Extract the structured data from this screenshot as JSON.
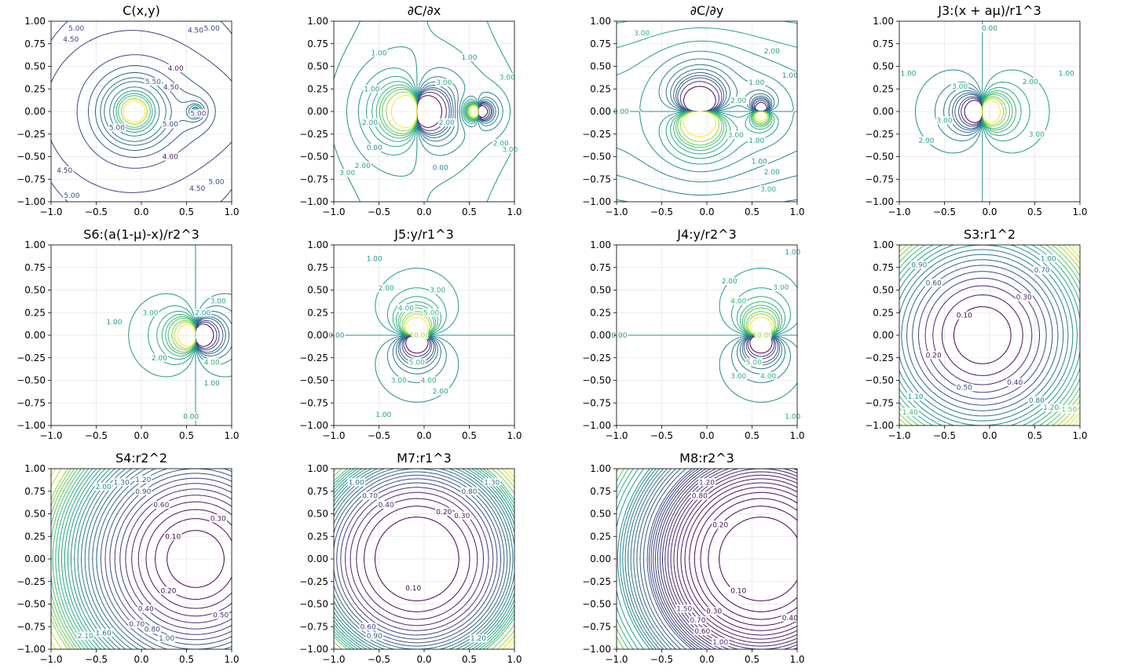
{
  "figure": {
    "rows": 3,
    "cols": 4
  },
  "chart_data": [
    {
      "type": "contour",
      "title": "C(x,y)",
      "field": "C",
      "xlim": [
        -1,
        1
      ],
      "ylim": [
        -1,
        1
      ],
      "xticks": [
        "−1.0",
        "−0.5",
        "0.0",
        "0.5",
        "1.0"
      ],
      "yticks": [
        "1.00",
        "0.75",
        "0.50",
        "0.25",
        "0.00",
        "−0.25",
        "−0.50",
        "−0.75",
        "−1.00"
      ],
      "levels": [
        3.5,
        3.75,
        4.0,
        4.25,
        4.5,
        4.75,
        5.0,
        5.25,
        5.5,
        5.75,
        6.0,
        6.5,
        7.0,
        7.5,
        8.0,
        9.0,
        10.0
      ],
      "labels": [
        {
          "x": -0.72,
          "y": 0.92,
          "text": "5.00"
        },
        {
          "x": -0.78,
          "y": 0.8,
          "text": "4.50"
        },
        {
          "x": 0.6,
          "y": 0.9,
          "text": "4.50"
        },
        {
          "x": 0.78,
          "y": 0.92,
          "text": "5.00"
        },
        {
          "x": 0.38,
          "y": 0.48,
          "text": "4.00"
        },
        {
          "x": 0.13,
          "y": 0.33,
          "text": "5.50"
        },
        {
          "x": 0.33,
          "y": 0.27,
          "text": "4.50"
        },
        {
          "x": 0.63,
          "y": -0.02,
          "text": "5.00"
        },
        {
          "x": 0.32,
          "y": -0.14,
          "text": "5.00"
        },
        {
          "x": -0.27,
          "y": -0.18,
          "text": "5.00"
        },
        {
          "x": 0.32,
          "y": -0.5,
          "text": "4.00"
        },
        {
          "x": -0.85,
          "y": -0.65,
          "text": "4.50"
        },
        {
          "x": -0.77,
          "y": -0.93,
          "text": "5.00"
        },
        {
          "x": 0.62,
          "y": -0.85,
          "text": "4.50"
        },
        {
          "x": 0.83,
          "y": -0.78,
          "text": "5.00"
        }
      ]
    },
    {
      "type": "contour",
      "title": "∂C/∂x",
      "field": "Cx",
      "xlim": [
        -1,
        1
      ],
      "ylim": [
        -1,
        1
      ],
      "xticks": [
        "−1.0",
        "−0.5",
        "0.0",
        "0.5",
        "1.0"
      ],
      "yticks": [
        "1.00",
        "0.75",
        "0.50",
        "0.25",
        "0.00",
        "−0.25",
        "−0.50",
        "−0.75",
        "−1.00"
      ],
      "levels": [
        -12,
        -8,
        -6,
        -5,
        -4,
        -3,
        -2,
        -1,
        0,
        1,
        2,
        3,
        4,
        5,
        6,
        8,
        12
      ],
      "labels": [
        {
          "x": -0.5,
          "y": 0.65,
          "text": "1.00"
        },
        {
          "x": 0.5,
          "y": 0.6,
          "text": "1.00"
        },
        {
          "x": 0.92,
          "y": 0.38,
          "text": "3.00"
        },
        {
          "x": -0.58,
          "y": 0.25,
          "text": "1.00"
        },
        {
          "x": 0.22,
          "y": 0.32,
          "text": "3.00"
        },
        {
          "x": -0.6,
          "y": -0.12,
          "text": "2.00"
        },
        {
          "x": -0.55,
          "y": -0.4,
          "text": "0.00"
        },
        {
          "x": 0.25,
          "y": -0.12,
          "text": "2.00"
        },
        {
          "x": 0.85,
          "y": -0.35,
          "text": "2.00"
        },
        {
          "x": 0.18,
          "y": -0.62,
          "text": "0.00"
        },
        {
          "x": -0.85,
          "y": -0.68,
          "text": "3.00"
        },
        {
          "x": -0.68,
          "y": -0.6,
          "text": "2.00"
        },
        {
          "x": 0.95,
          "y": -0.42,
          "text": "3.00"
        }
      ]
    },
    {
      "type": "contour",
      "title": "∂C/∂y",
      "field": "Cy",
      "xlim": [
        -1,
        1
      ],
      "ylim": [
        -1,
        1
      ],
      "xticks": [
        "−1.0",
        "−0.5",
        "0.0",
        "0.5",
        "1.0"
      ],
      "yticks": [
        "1.00",
        "0.75",
        "0.50",
        "0.25",
        "0.00",
        "−0.25",
        "−0.50",
        "−0.75",
        "−1.00"
      ],
      "levels": [
        -12,
        -8,
        -6,
        -5,
        -4,
        -3,
        -2,
        -1,
        0,
        1,
        2,
        3,
        4,
        5,
        6,
        8,
        12
      ],
      "labels": [
        {
          "x": -0.72,
          "y": 0.87,
          "text": "3.00"
        },
        {
          "x": 0.72,
          "y": 0.67,
          "text": "2.00"
        },
        {
          "x": 0.92,
          "y": 0.4,
          "text": "1.00"
        },
        {
          "x": 0.55,
          "y": 0.32,
          "text": "1.00"
        },
        {
          "x": 0.35,
          "y": 0.12,
          "text": "2.00"
        },
        {
          "x": -0.95,
          "y": 0.0,
          "text": "0.00"
        },
        {
          "x": 0.32,
          "y": -0.26,
          "text": "3.00"
        },
        {
          "x": 0.55,
          "y": -0.32,
          "text": "1.00"
        },
        {
          "x": 0.58,
          "y": -0.55,
          "text": "1.00"
        },
        {
          "x": 0.72,
          "y": -0.67,
          "text": "2.00"
        },
        {
          "x": 0.68,
          "y": -0.86,
          "text": "3.00"
        }
      ]
    },
    {
      "type": "contour",
      "title": "J3:(x + aμ)/r1^3",
      "field": "J3",
      "xlim": [
        -1,
        1
      ],
      "ylim": [
        -1,
        1
      ],
      "xticks": [
        "−1.0",
        "−0.5",
        "0.0",
        "0.5",
        "1.0"
      ],
      "yticks": [
        "1.00",
        "0.75",
        "0.50",
        "0.25",
        "0.00",
        "−0.25",
        "−0.50",
        "−0.75",
        "−1.00"
      ],
      "levels": [
        -14,
        -10,
        -8,
        -6,
        -5,
        -4,
        -3,
        -2,
        -1,
        0,
        1,
        2,
        3,
        4,
        5,
        6,
        8,
        10,
        14
      ],
      "labels": [
        {
          "x": -0.9,
          "y": 0.42,
          "text": "1.00"
        },
        {
          "x": 0.85,
          "y": 0.42,
          "text": "1.00"
        },
        {
          "x": 0.0,
          "y": 0.92,
          "text": "0.00"
        },
        {
          "x": -0.33,
          "y": 0.28,
          "text": "3.00"
        },
        {
          "x": 0.45,
          "y": 0.33,
          "text": "2.00"
        },
        {
          "x": -0.5,
          "y": -0.1,
          "text": "3.00"
        },
        {
          "x": -0.7,
          "y": -0.32,
          "text": "2.00"
        },
        {
          "x": 0.52,
          "y": -0.25,
          "text": "3.00"
        }
      ]
    },
    {
      "type": "contour",
      "title": "S6:(a(1-μ)-x)/r2^3",
      "field": "S6",
      "xlim": [
        -1,
        1
      ],
      "ylim": [
        -1,
        1
      ],
      "xticks": [
        "−1.0",
        "−0.5",
        "0.0",
        "0.5",
        "1.0"
      ],
      "yticks": [
        "1.00",
        "0.75",
        "0.50",
        "0.25",
        "0.00",
        "−0.25",
        "−0.50",
        "−0.75",
        "−1.00"
      ],
      "levels": [
        -14,
        -10,
        -8,
        -6,
        -5,
        -4,
        -3,
        -2,
        -1,
        0,
        1,
        2,
        3,
        4,
        5,
        6,
        8,
        10,
        14
      ],
      "labels": [
        {
          "x": -0.3,
          "y": 0.15,
          "text": "1.00"
        },
        {
          "x": 0.1,
          "y": 0.25,
          "text": "3.00"
        },
        {
          "x": 0.68,
          "y": 0.25,
          "text": "2.00"
        },
        {
          "x": 0.85,
          "y": 0.38,
          "text": "3.00"
        },
        {
          "x": 0.2,
          "y": -0.25,
          "text": "2.00"
        },
        {
          "x": 0.78,
          "y": -0.3,
          "text": "4.00"
        },
        {
          "x": 0.78,
          "y": -0.53,
          "text": "1.00"
        },
        {
          "x": 0.55,
          "y": -0.9,
          "text": "0.00"
        }
      ]
    },
    {
      "type": "contour",
      "title": "J5:y/r1^3",
      "field": "J5",
      "xlim": [
        -1,
        1
      ],
      "ylim": [
        -1,
        1
      ],
      "xticks": [
        "−1.0",
        "−0.5",
        "0.0",
        "0.5",
        "1.0"
      ],
      "yticks": [
        "1.00",
        "0.75",
        "0.50",
        "0.25",
        "0.00",
        "−0.25",
        "−0.50",
        "−0.75",
        "−1.00"
      ],
      "levels": [
        -14,
        -10,
        -8,
        -6,
        -5,
        -4,
        -3,
        -2,
        -1,
        0,
        1,
        2,
        3,
        4,
        5,
        6,
        8,
        10,
        14
      ],
      "labels": [
        {
          "x": -0.55,
          "y": 0.85,
          "text": "1.00"
        },
        {
          "x": -0.42,
          "y": 0.52,
          "text": "2.00"
        },
        {
          "x": 0.15,
          "y": 0.5,
          "text": "3.00"
        },
        {
          "x": -0.2,
          "y": 0.3,
          "text": "4.00"
        },
        {
          "x": 0.08,
          "y": 0.25,
          "text": "5.00"
        },
        {
          "x": -0.97,
          "y": 0.0,
          "text": "0.00"
        },
        {
          "x": -0.05,
          "y": 0.0,
          "text": "10.00"
        },
        {
          "x": -0.28,
          "y": -0.5,
          "text": "3.00"
        },
        {
          "x": 0.05,
          "y": -0.5,
          "text": "4.00"
        },
        {
          "x": -0.08,
          "y": -0.3,
          "text": "5.00"
        },
        {
          "x": -0.45,
          "y": -0.88,
          "text": "1.00"
        },
        {
          "x": 0.18,
          "y": -0.62,
          "text": "2.00"
        }
      ]
    },
    {
      "type": "contour",
      "title": "J4:y/r2^3",
      "field": "J4",
      "xlim": [
        -1,
        1
      ],
      "ylim": [
        -1,
        1
      ],
      "xticks": [
        "−1.0",
        "−0.5",
        "0.0",
        "0.5",
        "1.0"
      ],
      "yticks": [
        "1.00",
        "0.75",
        "0.50",
        "0.25",
        "0.00",
        "−0.25",
        "−0.50",
        "−0.75",
        "−1.00"
      ],
      "levels": [
        -14,
        -10,
        -8,
        -6,
        -5,
        -4,
        -3,
        -2,
        -1,
        0,
        1,
        2,
        3,
        4,
        5,
        6,
        8,
        10,
        14
      ],
      "labels": [
        {
          "x": 0.95,
          "y": 0.92,
          "text": "1.00"
        },
        {
          "x": 0.25,
          "y": 0.6,
          "text": "2.00"
        },
        {
          "x": 0.82,
          "y": 0.53,
          "text": "3.00"
        },
        {
          "x": 0.35,
          "y": 0.38,
          "text": "4.00"
        },
        {
          "x": -0.97,
          "y": 0.0,
          "text": "0.00"
        },
        {
          "x": 0.62,
          "y": 0.0,
          "text": "10.00"
        },
        {
          "x": 0.35,
          "y": -0.45,
          "text": "3.00"
        },
        {
          "x": 0.68,
          "y": -0.45,
          "text": "4.00"
        },
        {
          "x": 0.52,
          "y": -0.3,
          "text": "5.00"
        },
        {
          "x": 0.95,
          "y": -0.9,
          "text": "1.00"
        }
      ]
    },
    {
      "type": "contour",
      "title": "S3:r1^2",
      "field": "S3",
      "xlim": [
        -1,
        1
      ],
      "ylim": [
        -1,
        1
      ],
      "xticks": [
        "−1.0",
        "−0.5",
        "0.0",
        "0.5",
        "1.0"
      ],
      "yticks": [
        "1.00",
        "0.75",
        "0.50",
        "0.25",
        "0.00",
        "−0.25",
        "−0.50",
        "−0.75",
        "−1.00"
      ],
      "levels": [
        0.1,
        0.2,
        0.3,
        0.4,
        0.5,
        0.6,
        0.7,
        0.8,
        0.9,
        1.0,
        1.1,
        1.2,
        1.3,
        1.4,
        1.5,
        1.6,
        1.7,
        1.8,
        1.9,
        2.0
      ],
      "labels": [
        {
          "x": -0.28,
          "y": 0.22,
          "text": "0.10"
        },
        {
          "x": 0.38,
          "y": 0.42,
          "text": "0.30"
        },
        {
          "x": -0.62,
          "y": 0.58,
          "text": "0.60"
        },
        {
          "x": 0.58,
          "y": 0.72,
          "text": "0.70"
        },
        {
          "x": -0.78,
          "y": 0.78,
          "text": "0.90"
        },
        {
          "x": 0.65,
          "y": 0.85,
          "text": "1.00"
        },
        {
          "x": -0.62,
          "y": -0.22,
          "text": "0.20"
        },
        {
          "x": 0.28,
          "y": -0.52,
          "text": "0.40"
        },
        {
          "x": -0.28,
          "y": -0.58,
          "text": "0.50"
        },
        {
          "x": 0.52,
          "y": -0.72,
          "text": "0.80"
        },
        {
          "x": -0.82,
          "y": -0.68,
          "text": "1.10"
        },
        {
          "x": 0.68,
          "y": -0.8,
          "text": "1.20"
        },
        {
          "x": -0.88,
          "y": -0.85,
          "text": "1.40"
        },
        {
          "x": 0.88,
          "y": -0.82,
          "text": "1.50"
        }
      ]
    },
    {
      "type": "contour",
      "title": "S4:r2^2",
      "field": "S4",
      "xlim": [
        -1,
        1
      ],
      "ylim": [
        -1,
        1
      ],
      "xticks": [
        "−1.0",
        "−0.5",
        "0.0",
        "0.5",
        "1.0"
      ],
      "yticks": [
        "1.00",
        "0.75",
        "0.50",
        "0.25",
        "0.00",
        "−0.25",
        "−0.50",
        "−0.75",
        "−1.00"
      ],
      "levels": [
        0.1,
        0.2,
        0.3,
        0.4,
        0.5,
        0.6,
        0.7,
        0.8,
        0.9,
        1.0,
        1.1,
        1.2,
        1.3,
        1.4,
        1.5,
        1.6,
        1.7,
        1.8,
        1.9,
        2.0,
        2.1,
        2.2,
        2.3,
        2.4,
        2.5,
        2.6,
        2.7,
        2.8,
        2.9,
        3.0,
        3.2,
        3.4,
        3.6
      ],
      "labels": [
        {
          "x": 0.35,
          "y": 0.25,
          "text": "0.10"
        },
        {
          "x": 0.85,
          "y": 0.45,
          "text": "0.30"
        },
        {
          "x": 0.22,
          "y": 0.6,
          "text": "0.60"
        },
        {
          "x": 0.02,
          "y": 0.75,
          "text": "0.90"
        },
        {
          "x": 0.02,
          "y": 0.88,
          "text": "1.20"
        },
        {
          "x": -0.22,
          "y": 0.85,
          "text": "1.30"
        },
        {
          "x": -0.42,
          "y": 0.8,
          "text": "2.00"
        },
        {
          "x": 0.3,
          "y": -0.35,
          "text": "0.20"
        },
        {
          "x": 0.05,
          "y": -0.55,
          "text": "0.40"
        },
        {
          "x": -0.05,
          "y": -0.72,
          "text": "0.70"
        },
        {
          "x": 0.12,
          "y": -0.78,
          "text": "0.80"
        },
        {
          "x": 0.28,
          "y": -0.88,
          "text": "1.00"
        },
        {
          "x": -0.42,
          "y": -0.82,
          "text": "1.60"
        },
        {
          "x": -0.62,
          "y": -0.85,
          "text": "2.10"
        },
        {
          "x": 0.88,
          "y": -0.62,
          "text": "0.50"
        }
      ]
    },
    {
      "type": "contour",
      "title": "M7:r1^3",
      "field": "M7",
      "xlim": [
        -1,
        1
      ],
      "ylim": [
        -1,
        1
      ],
      "xticks": [
        "−1.0",
        "−0.5",
        "0.0",
        "0.5",
        "1.0"
      ],
      "yticks": [
        "1.00",
        "0.75",
        "0.50",
        "0.25",
        "0.00",
        "−0.25",
        "−0.50",
        "−0.75",
        "−1.00"
      ],
      "levels": [
        0.1,
        0.2,
        0.3,
        0.4,
        0.5,
        0.6,
        0.7,
        0.8,
        0.9,
        1.0,
        1.1,
        1.2,
        1.3,
        1.4,
        1.5,
        1.6,
        1.7,
        1.8,
        1.9,
        2.0,
        2.2,
        2.4,
        2.6,
        2.8
      ],
      "labels": [
        {
          "x": -0.12,
          "y": -0.32,
          "text": "0.10"
        },
        {
          "x": 0.22,
          "y": 0.52,
          "text": "0.20"
        },
        {
          "x": 0.42,
          "y": 0.48,
          "text": "0.30"
        },
        {
          "x": -0.42,
          "y": 0.6,
          "text": "0.40"
        },
        {
          "x": -0.6,
          "y": 0.7,
          "text": "0.70"
        },
        {
          "x": 0.5,
          "y": 0.75,
          "text": "0.80"
        },
        {
          "x": -0.75,
          "y": 0.85,
          "text": "1.00"
        },
        {
          "x": -0.62,
          "y": -0.75,
          "text": "0.60"
        },
        {
          "x": -0.55,
          "y": -0.85,
          "text": "0.90"
        },
        {
          "x": 0.6,
          "y": -0.88,
          "text": "1.20"
        },
        {
          "x": 0.75,
          "y": 0.85,
          "text": "1.30"
        }
      ]
    },
    {
      "type": "contour",
      "title": "M8:r2^3",
      "field": "M8",
      "xlim": [
        -1,
        1
      ],
      "ylim": [
        -1,
        1
      ],
      "xticks": [
        "−1.0",
        "−0.5",
        "0.0",
        "0.5",
        "1.0"
      ],
      "yticks": [
        "1.00",
        "0.75",
        "0.50",
        "0.25",
        "0.00",
        "−0.25",
        "−0.50",
        "−0.75",
        "−1.00"
      ],
      "levels": [
        0.1,
        0.2,
        0.3,
        0.4,
        0.5,
        0.6,
        0.7,
        0.8,
        0.9,
        1.0,
        1.1,
        1.2,
        1.3,
        1.4,
        1.5,
        1.6,
        1.7,
        1.8,
        1.9,
        2.0,
        2.2,
        2.4,
        2.6,
        2.8,
        3.0,
        3.2,
        3.4,
        3.6,
        3.8,
        4.0,
        4.4,
        4.8,
        5.2,
        5.6,
        6.0,
        6.5,
        7.0,
        7.5,
        8.0
      ],
      "labels": [
        {
          "x": 0.15,
          "y": 0.38,
          "text": "0.20"
        },
        {
          "x": -0.08,
          "y": 0.7,
          "text": "0.80"
        },
        {
          "x": 0.0,
          "y": 0.85,
          "text": "1.20"
        },
        {
          "x": 0.35,
          "y": -0.35,
          "text": "0.10"
        },
        {
          "x": 0.08,
          "y": -0.58,
          "text": "0.30"
        },
        {
          "x": -0.1,
          "y": -0.68,
          "text": "0.70"
        },
        {
          "x": -0.05,
          "y": -0.8,
          "text": "0.60"
        },
        {
          "x": 0.15,
          "y": -0.92,
          "text": "1.00"
        },
        {
          "x": -0.25,
          "y": -0.55,
          "text": "1.50"
        },
        {
          "x": 0.92,
          "y": -0.65,
          "text": "0.40"
        }
      ]
    }
  ]
}
